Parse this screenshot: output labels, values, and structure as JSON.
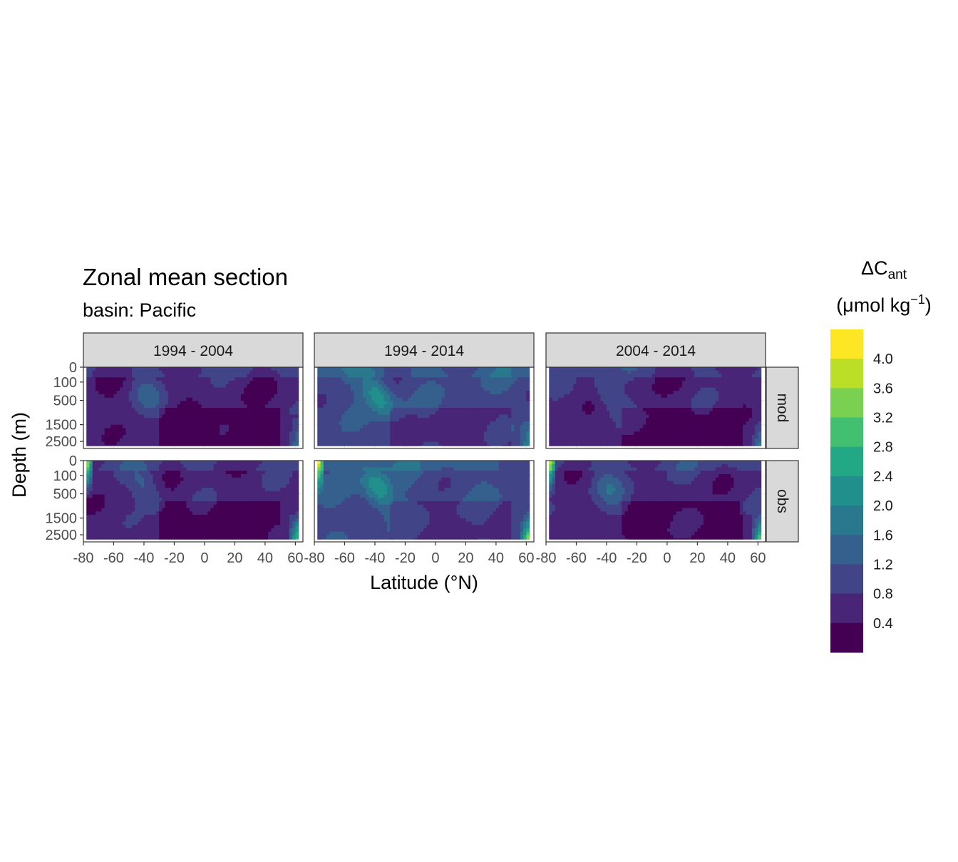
{
  "chart_data": {
    "type": "heatmap",
    "title": "Zonal mean section",
    "subtitle": "basin: Pacific",
    "xlabel": "Latitude (°N)",
    "ylabel": "Depth (m)",
    "xlim": [
      -80,
      65
    ],
    "ylim": [
      0,
      3000
    ],
    "y_scale": "sqrt, reversed",
    "x_ticks": [
      -80,
      -60,
      -40,
      -20,
      0,
      20,
      40,
      60
    ],
    "x_tick_labels": [
      "-80",
      "-60",
      "-40",
      "-20",
      "0",
      "20",
      "40",
      "60"
    ],
    "y_ticks": [
      0,
      100,
      500,
      1500,
      2500
    ],
    "y_tick_labels": [
      "0",
      "100",
      "500",
      "1500",
      "2500"
    ],
    "facet_columns": [
      "1994 - 2004",
      "1994 - 2014",
      "2004 - 2014"
    ],
    "facet_rows": [
      "mod",
      "obs"
    ],
    "legend": {
      "title_main": "ΔC",
      "title_sub": "ant",
      "unit_prefix": "(μmol kg",
      "unit_sup": "−1",
      "unit_suffix": ")",
      "position": "right",
      "breaks": [
        "4.0",
        "3.6",
        "3.2",
        "2.8",
        "2.4",
        "2.0",
        "1.6",
        "1.2",
        "0.8",
        "0.4"
      ],
      "colors": [
        "#440154",
        "#472D7B",
        "#3B528B",
        "#2C728E",
        "#21908C",
        "#27AD81",
        "#5DC863",
        "#AADC32",
        "#FDE725"
      ],
      "colors_full": [
        "#440154",
        "#482576",
        "#414487",
        "#35608D",
        "#2A788E",
        "#21908C",
        "#22A884",
        "#43BF71",
        "#7AD151",
        "#BBDF27",
        "#FDE725"
      ]
    },
    "panels": [
      {
        "column": "1994 - 2004",
        "row": "mod",
        "description_levels": "mostly 0.4-1.2, slightly higher near surface"
      },
      {
        "column": "1994 - 2014",
        "row": "mod",
        "description_levels": "mostly 0.8-2.0 with higher values around -40 °N at 100-500 m"
      },
      {
        "column": "2004 - 2014",
        "row": "mod",
        "description_levels": "mostly 0.4-1.2, higher near 60 °N at depth"
      },
      {
        "column": "1994 - 2004",
        "row": "obs",
        "description_levels": "mostly 0.4-1.2, up to 4.0 near -80 °N surface and 60 °N deep"
      },
      {
        "column": "1994 - 2014",
        "row": "obs",
        "description_levels": "mostly 0.8-2.4, up to 4.0 near -80 °N surface and 60 °N deep"
      },
      {
        "column": "2004 - 2014",
        "row": "obs",
        "description_levels": "mostly 0.4-1.2, up to 4.0 near 60 °N deep"
      }
    ]
  }
}
